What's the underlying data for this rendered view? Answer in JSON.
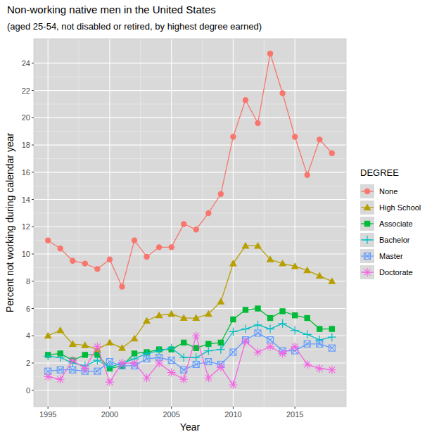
{
  "chart_data": {
    "type": "line",
    "title": "Non-working native men in the United States",
    "subtitle": "(aged 25-54, not disabled or retired, by highest degree earned)",
    "x_label": "Year",
    "y_label": "Percent not working during calendar year",
    "legend_title": "DEGREE",
    "legend": "right",
    "grid": true,
    "x": [
      1995,
      1996,
      1997,
      1998,
      1999,
      2000,
      2001,
      2002,
      2003,
      2004,
      2005,
      2006,
      2007,
      2008,
      2009,
      2010,
      2011,
      2012,
      2013,
      2014,
      2015,
      2016,
      2017,
      2018
    ],
    "xlim": [
      1993.85,
      2019.15
    ],
    "xticks": [
      1995,
      2000,
      2005,
      2010,
      2015
    ],
    "ylim": [
      -1.2,
      25.8
    ],
    "yticks": [
      0,
      2,
      4,
      6,
      8,
      10,
      12,
      14,
      16,
      18,
      20,
      22,
      24
    ],
    "series": [
      {
        "name": "None",
        "color": "#F8766D",
        "marker": "circle",
        "values": [
          11.0,
          10.4,
          9.5,
          9.3,
          8.9,
          9.6,
          7.6,
          11.0,
          9.8,
          10.5,
          10.5,
          12.2,
          11.8,
          13.0,
          14.4,
          18.6,
          21.3,
          19.6,
          24.7,
          21.8,
          18.6,
          15.8,
          18.4,
          17.4
        ]
      },
      {
        "name": "High School",
        "color": "#B79F00",
        "marker": "triangle",
        "values": [
          4.0,
          4.4,
          3.4,
          3.3,
          3.0,
          3.5,
          3.1,
          3.8,
          5.1,
          5.5,
          5.6,
          5.3,
          5.3,
          5.6,
          6.5,
          9.3,
          10.6,
          10.6,
          9.6,
          9.3,
          9.1,
          8.8,
          8.4,
          8.0
        ]
      },
      {
        "name": "Associate",
        "color": "#00BA38",
        "marker": "square",
        "values": [
          2.6,
          2.7,
          2.2,
          2.6,
          2.6,
          1.6,
          1.8,
          2.7,
          2.8,
          3.0,
          3.0,
          3.5,
          3.1,
          3.4,
          3.5,
          5.2,
          5.9,
          6.0,
          5.3,
          5.8,
          5.5,
          5.3,
          4.5,
          4.5
        ]
      },
      {
        "name": "Bachelor",
        "color": "#00BFC4",
        "marker": "plus",
        "values": [
          2.5,
          2.4,
          2.0,
          1.8,
          2.2,
          1.7,
          2.0,
          2.3,
          2.7,
          2.9,
          3.1,
          2.4,
          2.4,
          2.9,
          3.0,
          4.3,
          4.5,
          4.8,
          4.5,
          4.9,
          4.4,
          4.1,
          3.7,
          3.9
        ]
      },
      {
        "name": "Master",
        "color": "#619CFF",
        "marker": "square-x",
        "values": [
          1.4,
          1.5,
          1.5,
          1.4,
          1.4,
          2.1,
          1.8,
          1.8,
          2.3,
          2.4,
          2.2,
          1.5,
          1.9,
          2.1,
          1.9,
          2.8,
          3.7,
          4.2,
          3.7,
          2.9,
          2.9,
          3.4,
          3.4,
          3.1
        ]
      },
      {
        "name": "Doctorate",
        "color": "#F564E3",
        "marker": "asterisk",
        "values": [
          1.0,
          0.8,
          2.2,
          1.6,
          3.2,
          0.6,
          2.0,
          2.0,
          0.9,
          2.0,
          1.3,
          0.8,
          4.0,
          0.9,
          1.7,
          0.4,
          3.6,
          2.8,
          3.2,
          2.7,
          3.2,
          1.9,
          1.6,
          1.5
        ]
      }
    ]
  }
}
